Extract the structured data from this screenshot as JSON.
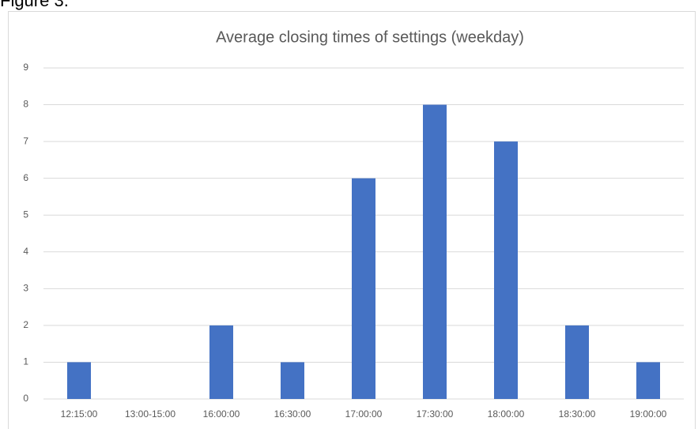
{
  "caption": "Figure 3.",
  "chart_data": {
    "type": "bar",
    "title": "Average closing times of settings (weekday)",
    "categories": [
      "12:15:00",
      "13:00-15:00",
      "16:00:00",
      "16:30:00",
      "17:00:00",
      "17:30:00",
      "18:00:00",
      "18:30:00",
      "19:00:00"
    ],
    "values": [
      1,
      0,
      2,
      1,
      6,
      8,
      7,
      2,
      1
    ],
    "color": "#4472c4",
    "ylim": [
      0,
      9
    ],
    "yticks": [
      0,
      1,
      2,
      3,
      4,
      5,
      6,
      7,
      8,
      9
    ],
    "grid": true
  }
}
